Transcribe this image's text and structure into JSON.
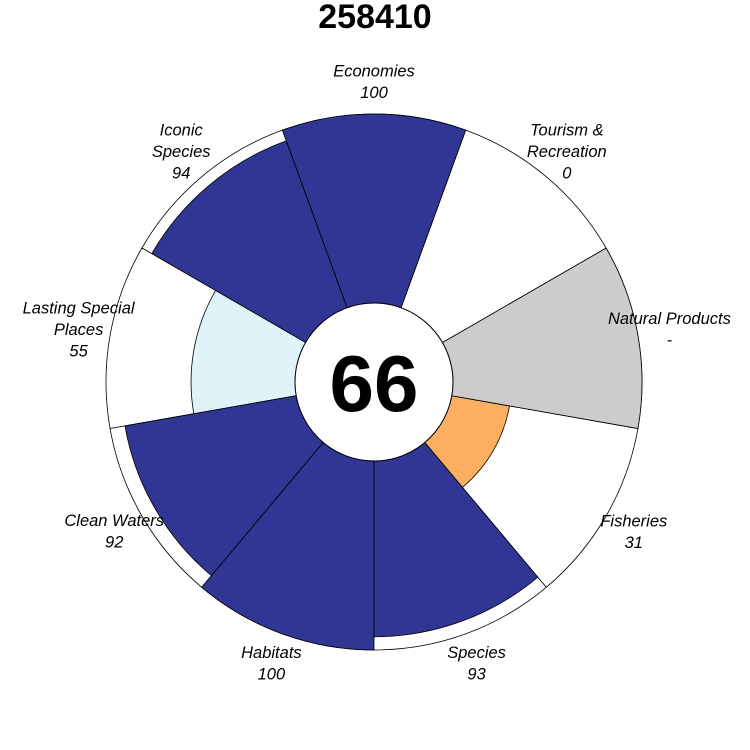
{
  "chart_data": {
    "type": "flower",
    "title": "258410",
    "center_score": "66",
    "max_value": 100,
    "colors": {
      "high": "#313695",
      "light": "#e0f3f8",
      "orange": "#fdae61",
      "na": "#cccccc",
      "empty": "#ffffff",
      "outline": "#000000"
    },
    "petals": [
      {
        "name": "Fisheries",
        "value": 31,
        "label_lines": [
          "Fisheries"
        ],
        "value_text": "31",
        "fill": "#fdae61"
      },
      {
        "name": "Natural Products",
        "value": null,
        "label_lines": [
          "Natural Products"
        ],
        "value_text": "-",
        "fill": "#cccccc"
      },
      {
        "name": "Tourism & Recreation",
        "value": 0,
        "label_lines": [
          "Tourism &",
          "Recreation"
        ],
        "value_text": "0",
        "fill": "#ffffff"
      },
      {
        "name": "Economies",
        "value": 100,
        "label_lines": [
          "Economies"
        ],
        "value_text": "100",
        "fill": "#313695"
      },
      {
        "name": "Iconic Species",
        "value": 94,
        "label_lines": [
          "Iconic",
          "Species"
        ],
        "value_text": "94",
        "fill": "#313695"
      },
      {
        "name": "Lasting Special Places",
        "value": 55,
        "label_lines": [
          "Lasting Special",
          "Places"
        ],
        "value_text": "55",
        "fill": "#e0f3f8"
      },
      {
        "name": "Clean Waters",
        "value": 92,
        "label_lines": [
          "Clean Waters"
        ],
        "value_text": "92",
        "fill": "#313695"
      },
      {
        "name": "Habitats",
        "value": 100,
        "label_lines": [
          "Habitats"
        ],
        "value_text": "100",
        "fill": "#313695"
      },
      {
        "name": "Species",
        "value": 93,
        "label_lines": [
          "Species"
        ],
        "value_text": "93",
        "fill": "#313695"
      }
    ]
  }
}
